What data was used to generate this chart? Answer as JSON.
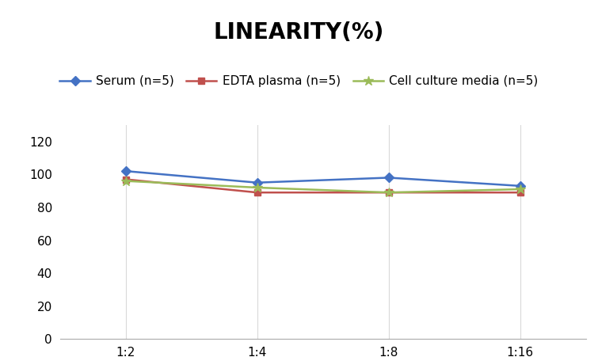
{
  "title": "LINEARITY(%)",
  "title_fontsize": 20,
  "title_fontweight": "bold",
  "x_labels": [
    "1:2",
    "1:4",
    "1:8",
    "1:16"
  ],
  "x_positions": [
    0,
    1,
    2,
    3
  ],
  "series": [
    {
      "label": "Serum (n=5)",
      "values": [
        102,
        95,
        98,
        93
      ],
      "color": "#4472C4",
      "marker": "D",
      "markersize": 6,
      "linewidth": 1.8
    },
    {
      "label": "EDTA plasma (n=5)",
      "values": [
        97,
        89,
        89,
        89
      ],
      "color": "#C0504D",
      "marker": "s",
      "markersize": 6,
      "linewidth": 1.8
    },
    {
      "label": "Cell culture media (n=5)",
      "values": [
        96,
        92,
        89,
        91
      ],
      "color": "#9BBB59",
      "marker": "*",
      "markersize": 9,
      "linewidth": 1.8
    }
  ],
  "ylim": [
    0,
    130
  ],
  "yticks": [
    0,
    20,
    40,
    60,
    80,
    100,
    120
  ],
  "grid_color": "#D9D9D9",
  "background_color": "#FFFFFF",
  "legend_fontsize": 11,
  "axis_fontsize": 11
}
